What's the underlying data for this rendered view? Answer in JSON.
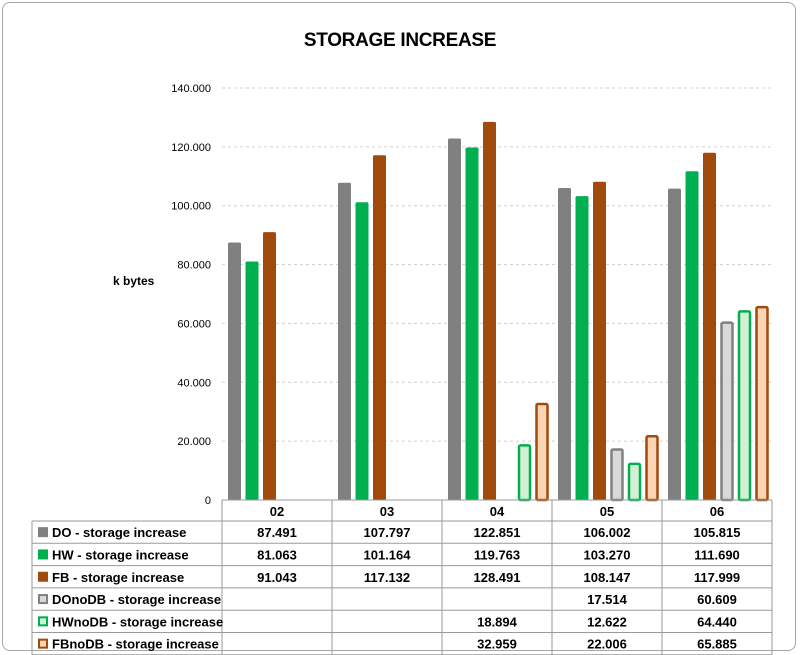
{
  "chart_data": {
    "type": "bar",
    "title": "STORAGE INCREASE",
    "ylabel": "k bytes",
    "xlabel": "",
    "ylim": [
      0,
      140000
    ],
    "yticks": [
      0,
      20000,
      40000,
      60000,
      80000,
      100000,
      120000,
      140000
    ],
    "ytick_labels": [
      "0",
      "20.000",
      "40.000",
      "60.000",
      "80.000",
      "100.000",
      "120.000",
      "140.000"
    ],
    "grid": "horizontal dashed",
    "legend": "data table below chart",
    "categories": [
      "02",
      "03",
      "04",
      "05",
      "06"
    ],
    "series": [
      {
        "name": "DO - storage increase",
        "color": "#808080",
        "fill": "#808080",
        "style": "solid",
        "values": [
          87491,
          107797,
          122851,
          106002,
          105815
        ],
        "labels": [
          "87.491",
          "107.797",
          "122.851",
          "106.002",
          "105.815"
        ]
      },
      {
        "name": "HW - storage increase",
        "color": "#00b050",
        "fill": "#00b050",
        "style": "solid",
        "values": [
          81063,
          101164,
          119763,
          103270,
          111690
        ],
        "labels": [
          "81.063",
          "101.164",
          "119.763",
          "103.270",
          "111.690"
        ]
      },
      {
        "name": "FB - storage increase",
        "color": "#a04a0c",
        "fill": "#a04a0c",
        "style": "solid",
        "values": [
          91043,
          117132,
          128491,
          108147,
          117999
        ],
        "labels": [
          "91.043",
          "117.132",
          "128.491",
          "108.147",
          "117.999"
        ]
      },
      {
        "name": "DOnoDB - storage increase",
        "color": "#808080",
        "fill": "#d9d9d9",
        "style": "outline",
        "values": [
          null,
          null,
          null,
          17514,
          60609
        ],
        "labels": [
          "",
          "",
          "",
          "17.514",
          "60.609"
        ]
      },
      {
        "name": "HWnoDB - storage increase",
        "color": "#00b050",
        "fill": "#d4f0d4",
        "style": "outline",
        "values": [
          null,
          null,
          18894,
          12622,
          64440
        ],
        "labels": [
          "",
          "",
          "18.894",
          "12.622",
          "64.440"
        ]
      },
      {
        "name": "FBnoDB - storage increase",
        "color": "#a04a0c",
        "fill": "#fcd5b4",
        "style": "outline",
        "values": [
          null,
          null,
          32959,
          22006,
          65885
        ],
        "labels": [
          "",
          "",
          "32.959",
          "22.006",
          "65.885"
        ]
      }
    ]
  }
}
